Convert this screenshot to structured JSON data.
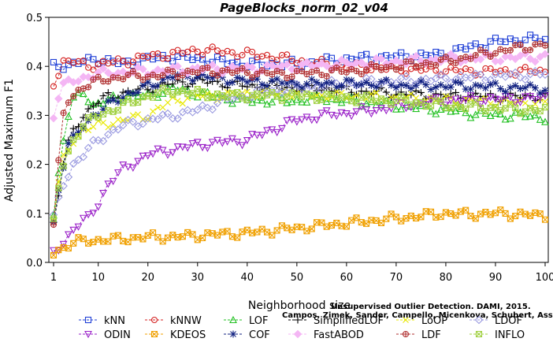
{
  "chart_data": {
    "type": "line",
    "title": "PageBlocks_norm_02_v04",
    "xlabel": "Neighborhood size",
    "ylabel": "Adjusted Maximum F1",
    "xlim": [
      1,
      100
    ],
    "ylim": [
      0,
      0.5
    ],
    "xticks": [
      1,
      10,
      20,
      30,
      40,
      50,
      60,
      70,
      80,
      90,
      100
    ],
    "yticks": [
      0.0,
      0.1,
      0.2,
      0.3,
      0.4,
      0.5
    ],
    "ytick_labels": [
      "0.0",
      "0.1",
      "0.2",
      "0.3",
      "0.4",
      "0.5"
    ],
    "grid": false,
    "legend_position": "bottom",
    "series": [
      {
        "name": "kNN",
        "color": "#1f3fd6",
        "marker": "square",
        "x": [
          1,
          5,
          10,
          15,
          20,
          25,
          30,
          35,
          40,
          45,
          50,
          55,
          60,
          65,
          70,
          75,
          80,
          85,
          90,
          95,
          100
        ],
        "y": [
          0.4,
          0.405,
          0.415,
          0.405,
          0.415,
          0.42,
          0.415,
          0.41,
          0.405,
          0.405,
          0.405,
          0.41,
          0.415,
          0.418,
          0.42,
          0.422,
          0.425,
          0.44,
          0.45,
          0.455,
          0.455
        ]
      },
      {
        "name": "kNNW",
        "color": "#d42020",
        "marker": "circle",
        "x": [
          1,
          3,
          5,
          8,
          10,
          15,
          20,
          25,
          30,
          35,
          40,
          45,
          50,
          55,
          60,
          65,
          70,
          75,
          80,
          85,
          90,
          95,
          100
        ],
        "y": [
          0.365,
          0.41,
          0.41,
          0.4,
          0.405,
          0.41,
          0.42,
          0.425,
          0.433,
          0.43,
          0.425,
          0.42,
          0.412,
          0.405,
          0.4,
          0.398,
          0.395,
          0.393,
          0.392,
          0.39,
          0.39,
          0.39,
          0.39
        ]
      },
      {
        "name": "LOF",
        "color": "#22c022",
        "marker": "triangle-up",
        "x": [
          1,
          2,
          3,
          4,
          5,
          7,
          9,
          12,
          15,
          20,
          25,
          30,
          35,
          40,
          45,
          50,
          55,
          60,
          65,
          70,
          75,
          80,
          85,
          90,
          95,
          100
        ],
        "y": [
          0.1,
          0.18,
          0.25,
          0.3,
          0.33,
          0.35,
          0.32,
          0.33,
          0.34,
          0.34,
          0.355,
          0.345,
          0.335,
          0.33,
          0.33,
          0.33,
          0.335,
          0.33,
          0.325,
          0.32,
          0.315,
          0.31,
          0.305,
          0.3,
          0.3,
          0.295
        ]
      },
      {
        "name": "SimplifiedLOF",
        "color": "#000000",
        "marker": "plus",
        "x": [
          1,
          2,
          3,
          4,
          5,
          7,
          9,
          12,
          15,
          20,
          25,
          30,
          35,
          40,
          45,
          50,
          55,
          60,
          65,
          70,
          75,
          80,
          85,
          90,
          95,
          100
        ],
        "y": [
          0.08,
          0.14,
          0.2,
          0.24,
          0.27,
          0.3,
          0.32,
          0.34,
          0.345,
          0.355,
          0.365,
          0.37,
          0.365,
          0.36,
          0.36,
          0.355,
          0.355,
          0.35,
          0.348,
          0.345,
          0.342,
          0.34,
          0.34,
          0.338,
          0.338,
          0.338
        ]
      },
      {
        "name": "LoOP",
        "color": "#e8e800",
        "marker": "x",
        "x": [
          1,
          2,
          3,
          5,
          7,
          10,
          15,
          20,
          25,
          30,
          35,
          40,
          45,
          50,
          55,
          60,
          65,
          70,
          75,
          80,
          85,
          90,
          95,
          100
        ],
        "y": [
          0.09,
          0.16,
          0.21,
          0.25,
          0.27,
          0.28,
          0.29,
          0.3,
          0.33,
          0.34,
          0.34,
          0.345,
          0.345,
          0.345,
          0.34,
          0.34,
          0.338,
          0.336,
          0.334,
          0.332,
          0.33,
          0.328,
          0.326,
          0.325
        ]
      },
      {
        "name": "LDOF",
        "color": "#9a9ae0",
        "marker": "diamond",
        "x": [
          1,
          3,
          5,
          8,
          10,
          15,
          20,
          25,
          30,
          35,
          40,
          45,
          50,
          55,
          60,
          65,
          70,
          75,
          80,
          85,
          90,
          95,
          100
        ],
        "y": [
          0.09,
          0.16,
          0.2,
          0.23,
          0.25,
          0.28,
          0.29,
          0.3,
          0.31,
          0.33,
          0.34,
          0.35,
          0.355,
          0.36,
          0.365,
          0.368,
          0.37,
          0.372,
          0.375,
          0.378,
          0.38,
          0.382,
          0.384
        ]
      },
      {
        "name": "ODIN",
        "color": "#9a20c8",
        "marker": "triangle-down",
        "x": [
          1,
          3,
          5,
          8,
          10,
          12,
          15,
          20,
          25,
          30,
          35,
          40,
          45,
          50,
          55,
          60,
          65,
          70,
          75,
          80,
          85,
          90,
          95,
          100
        ],
        "y": [
          0.02,
          0.04,
          0.07,
          0.09,
          0.12,
          0.16,
          0.19,
          0.22,
          0.23,
          0.24,
          0.245,
          0.25,
          0.27,
          0.29,
          0.3,
          0.305,
          0.31,
          0.318,
          0.325,
          0.33,
          0.332,
          0.333,
          0.334,
          0.335
        ]
      },
      {
        "name": "KDEOS",
        "color": "#f0a000",
        "marker": "square-x",
        "x": [
          1,
          3,
          5,
          8,
          10,
          15,
          20,
          25,
          30,
          35,
          40,
          45,
          50,
          55,
          60,
          65,
          70,
          75,
          80,
          85,
          90,
          95,
          100
        ],
        "y": [
          0.02,
          0.03,
          0.04,
          0.045,
          0.045,
          0.048,
          0.052,
          0.052,
          0.055,
          0.058,
          0.06,
          0.065,
          0.07,
          0.075,
          0.08,
          0.085,
          0.09,
          0.095,
          0.1,
          0.098,
          0.1,
          0.098,
          0.095
        ]
      },
      {
        "name": "COF",
        "color": "#102080",
        "marker": "asterisk",
        "x": [
          1,
          2,
          3,
          4,
          5,
          7,
          9,
          12,
          15,
          18,
          20,
          25,
          30,
          35,
          40,
          45,
          50,
          55,
          60,
          65,
          70,
          75,
          80,
          85,
          90,
          95,
          100
        ],
        "y": [
          0.08,
          0.15,
          0.2,
          0.24,
          0.25,
          0.28,
          0.3,
          0.32,
          0.34,
          0.35,
          0.36,
          0.38,
          0.38,
          0.375,
          0.37,
          0.368,
          0.365,
          0.365,
          0.365,
          0.365,
          0.362,
          0.36,
          0.36,
          0.36,
          0.358,
          0.356,
          0.355
        ]
      },
      {
        "name": "FastABOD",
        "color": "#f4b6f4",
        "marker": "diamond-filled",
        "x": [
          1,
          2,
          3,
          5,
          8,
          10,
          15,
          20,
          25,
          30,
          35,
          40,
          45,
          50,
          55,
          60,
          65,
          70,
          75,
          80,
          85,
          90,
          95,
          100
        ],
        "y": [
          0.3,
          0.34,
          0.36,
          0.37,
          0.38,
          0.385,
          0.388,
          0.39,
          0.392,
          0.395,
          0.395,
          0.395,
          0.398,
          0.4,
          0.402,
          0.405,
          0.408,
          0.41,
          0.412,
          0.415,
          0.416,
          0.417,
          0.418,
          0.42
        ]
      },
      {
        "name": "LDF",
        "color": "#b03030",
        "marker": "circle-plus",
        "x": [
          1,
          2,
          3,
          4,
          5,
          7,
          10,
          15,
          20,
          25,
          30,
          35,
          40,
          45,
          50,
          55,
          60,
          65,
          70,
          75,
          80,
          85,
          90,
          95,
          100
        ],
        "y": [
          0.08,
          0.2,
          0.3,
          0.33,
          0.34,
          0.36,
          0.37,
          0.38,
          0.38,
          0.385,
          0.39,
          0.39,
          0.388,
          0.385,
          0.385,
          0.388,
          0.39,
          0.395,
          0.4,
          0.405,
          0.41,
          0.42,
          0.43,
          0.438,
          0.445
        ]
      },
      {
        "name": "INFLO",
        "color": "#a0d040",
        "marker": "square-x",
        "x": [
          1,
          2,
          3,
          5,
          7,
          10,
          15,
          20,
          25,
          30,
          35,
          40,
          45,
          50,
          55,
          60,
          65,
          70,
          75,
          80,
          85,
          90,
          95,
          100
        ],
        "y": [
          0.08,
          0.15,
          0.2,
          0.25,
          0.28,
          0.3,
          0.32,
          0.34,
          0.35,
          0.345,
          0.34,
          0.34,
          0.34,
          0.34,
          0.338,
          0.335,
          0.332,
          0.33,
          0.325,
          0.32,
          0.318,
          0.315,
          0.312,
          0.31
        ]
      }
    ]
  },
  "watermark": {
    "line1": "Unsupervised Outlier Detection. DAMI, 2015.",
    "line2": "Campos, Zimek, Sander, Campello, Micenkova, Schubert, Assent, Houle"
  }
}
